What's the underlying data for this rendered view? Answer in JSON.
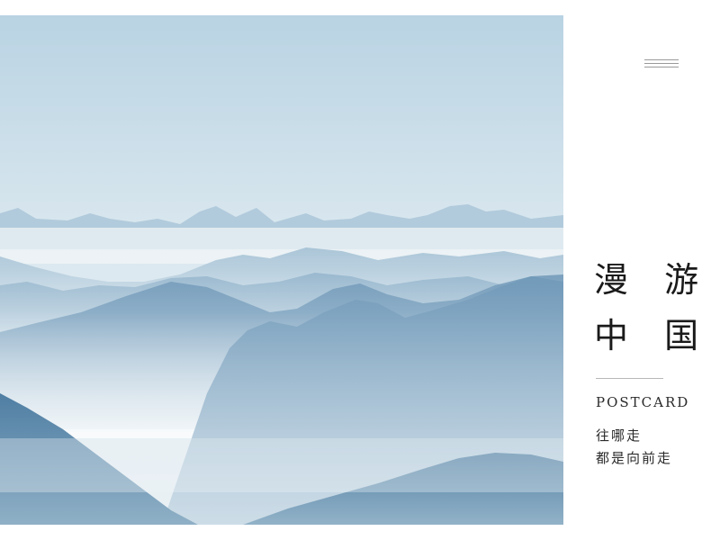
{
  "title": {
    "line1": "漫 游",
    "line2": "中 国"
  },
  "subtitle": "POSTCARD",
  "tagline": {
    "line1": "往哪走",
    "line2": "都是向前走"
  },
  "icons": {
    "menu": "hamburger-menu-icon"
  },
  "colors": {
    "sky_top": "#b9d3e3",
    "sky_bottom": "#e8f0f4",
    "mountain_far": "#a9c5d8",
    "mountain_mid": "#8fb2cb",
    "mountain_near": "#5f8caf",
    "text": "#1a1a1a"
  }
}
